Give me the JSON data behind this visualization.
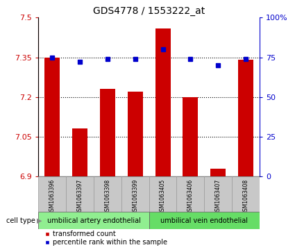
{
  "title": "GDS4778 / 1553222_at",
  "samples": [
    "GSM1063396",
    "GSM1063397",
    "GSM1063398",
    "GSM1063399",
    "GSM1063405",
    "GSM1063406",
    "GSM1063407",
    "GSM1063408"
  ],
  "red_values": [
    7.35,
    7.08,
    7.23,
    7.22,
    7.46,
    7.2,
    6.93,
    7.34
  ],
  "blue_values": [
    75,
    72,
    74,
    74,
    80,
    74,
    70,
    74
  ],
  "ylim_left": [
    6.9,
    7.5
  ],
  "ylim_right": [
    0,
    100
  ],
  "yticks_left": [
    6.9,
    7.05,
    7.2,
    7.35,
    7.5
  ],
  "yticks_right": [
    0,
    25,
    50,
    75,
    100
  ],
  "ytick_labels_right": [
    "0",
    "25",
    "50",
    "75",
    "100%"
  ],
  "cell_type_groups": [
    {
      "label": "umbilical artery endothelial",
      "n_samples": 4,
      "color": "#90ee90"
    },
    {
      "label": "umbilical vein endothelial",
      "n_samples": 4,
      "color": "#66dd66"
    }
  ],
  "bar_color": "#cc0000",
  "dot_color": "#0000cc",
  "bar_width": 0.55,
  "bg_color": "#ffffff",
  "panel_bg": "#c8c8c8",
  "legend_red_label": "transformed count",
  "legend_blue_label": "percentile rank within the sample",
  "cell_type_label": "cell type"
}
